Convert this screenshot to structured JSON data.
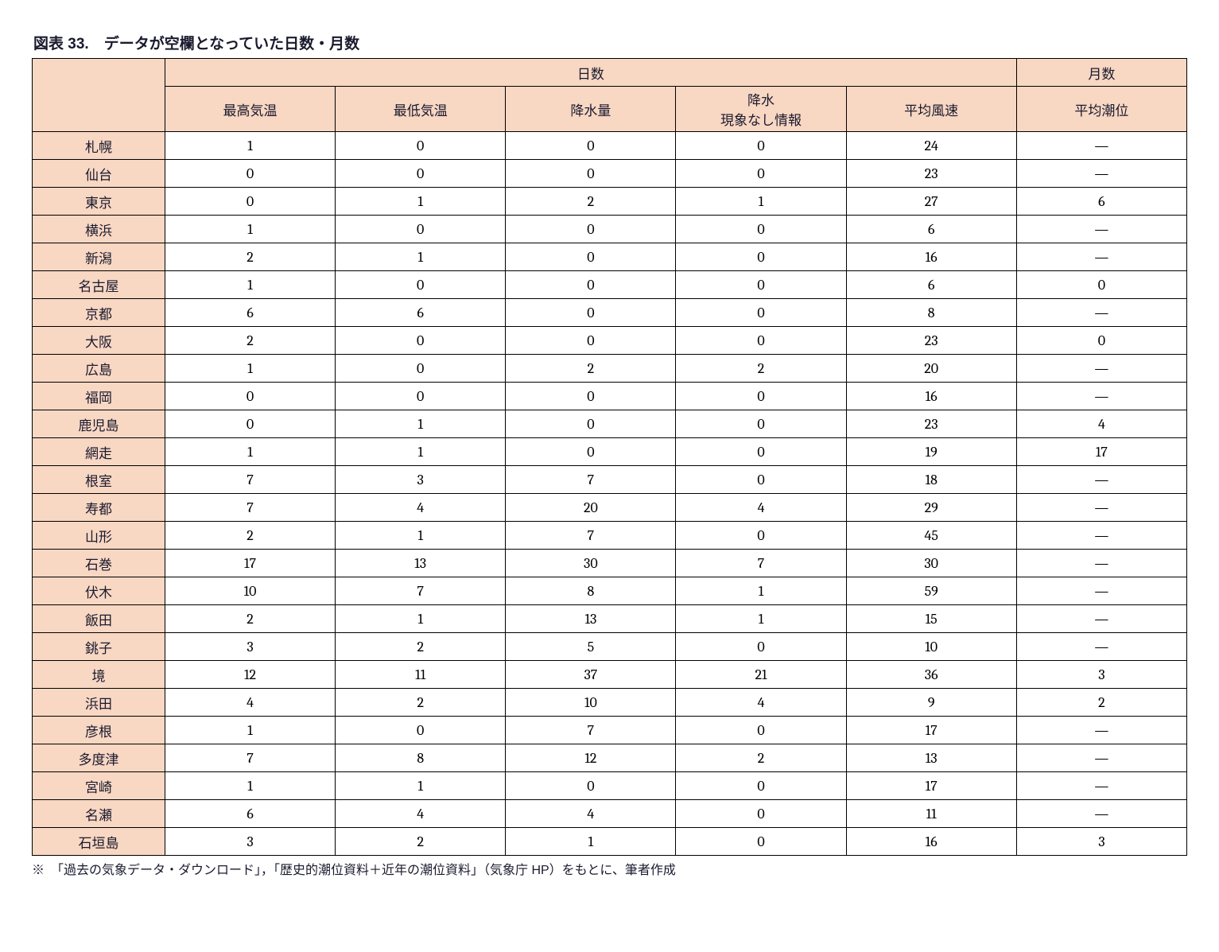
{
  "title": "図表 33.　データが空欄となっていた日数・月数",
  "footnote": "※　「過去の気象データ・ダウンロード」，「歴史的潮位資料＋近年の潮位資料」（気象庁 HP）をもとに、筆者作成",
  "header_group_days": "日数",
  "header_group_months": "月数",
  "columns": {
    "max_temp": "最高気温",
    "min_temp": "最低気温",
    "precip": "降水量",
    "precip_none": "降水\n現象なし情報",
    "wind": "平均風速",
    "tide": "平均潮位"
  },
  "rows": [
    {
      "city": "札幌",
      "max_temp": "1",
      "min_temp": "0",
      "precip": "0",
      "precip_none": "0",
      "wind": "24",
      "tide": "―"
    },
    {
      "city": "仙台",
      "max_temp": "0",
      "min_temp": "0",
      "precip": "0",
      "precip_none": "0",
      "wind": "23",
      "tide": "―"
    },
    {
      "city": "東京",
      "max_temp": "0",
      "min_temp": "1",
      "precip": "2",
      "precip_none": "1",
      "wind": "27",
      "tide": "6"
    },
    {
      "city": "横浜",
      "max_temp": "1",
      "min_temp": "0",
      "precip": "0",
      "precip_none": "0",
      "wind": "6",
      "tide": "―"
    },
    {
      "city": "新潟",
      "max_temp": "2",
      "min_temp": "1",
      "precip": "0",
      "precip_none": "0",
      "wind": "16",
      "tide": "―"
    },
    {
      "city": "名古屋",
      "max_temp": "1",
      "min_temp": "0",
      "precip": "0",
      "precip_none": "0",
      "wind": "6",
      "tide": "0"
    },
    {
      "city": "京都",
      "max_temp": "6",
      "min_temp": "6",
      "precip": "0",
      "precip_none": "0",
      "wind": "8",
      "tide": "―"
    },
    {
      "city": "大阪",
      "max_temp": "2",
      "min_temp": "0",
      "precip": "0",
      "precip_none": "0",
      "wind": "23",
      "tide": "0"
    },
    {
      "city": "広島",
      "max_temp": "1",
      "min_temp": "0",
      "precip": "2",
      "precip_none": "2",
      "wind": "20",
      "tide": "―"
    },
    {
      "city": "福岡",
      "max_temp": "0",
      "min_temp": "0",
      "precip": "0",
      "precip_none": "0",
      "wind": "16",
      "tide": "―"
    },
    {
      "city": "鹿児島",
      "max_temp": "0",
      "min_temp": "1",
      "precip": "0",
      "precip_none": "0",
      "wind": "23",
      "tide": "4"
    },
    {
      "city": "網走",
      "max_temp": "1",
      "min_temp": "1",
      "precip": "0",
      "precip_none": "0",
      "wind": "19",
      "tide": "17"
    },
    {
      "city": "根室",
      "max_temp": "7",
      "min_temp": "3",
      "precip": "7",
      "precip_none": "0",
      "wind": "18",
      "tide": "―"
    },
    {
      "city": "寿都",
      "max_temp": "7",
      "min_temp": "4",
      "precip": "20",
      "precip_none": "4",
      "wind": "29",
      "tide": "―"
    },
    {
      "city": "山形",
      "max_temp": "2",
      "min_temp": "1",
      "precip": "7",
      "precip_none": "0",
      "wind": "45",
      "tide": "―"
    },
    {
      "city": "石巻",
      "max_temp": "17",
      "min_temp": "13",
      "precip": "30",
      "precip_none": "7",
      "wind": "30",
      "tide": "―"
    },
    {
      "city": "伏木",
      "max_temp": "10",
      "min_temp": "7",
      "precip": "8",
      "precip_none": "1",
      "wind": "59",
      "tide": "―"
    },
    {
      "city": "飯田",
      "max_temp": "2",
      "min_temp": "1",
      "precip": "13",
      "precip_none": "1",
      "wind": "15",
      "tide": "―"
    },
    {
      "city": "銚子",
      "max_temp": "3",
      "min_temp": "2",
      "precip": "5",
      "precip_none": "0",
      "wind": "10",
      "tide": "―"
    },
    {
      "city": "境",
      "max_temp": "12",
      "min_temp": "11",
      "precip": "37",
      "precip_none": "21",
      "wind": "36",
      "tide": "3"
    },
    {
      "city": "浜田",
      "max_temp": "4",
      "min_temp": "2",
      "precip": "10",
      "precip_none": "4",
      "wind": "9",
      "tide": "2"
    },
    {
      "city": "彦根",
      "max_temp": "1",
      "min_temp": "0",
      "precip": "7",
      "precip_none": "0",
      "wind": "17",
      "tide": "―"
    },
    {
      "city": "多度津",
      "max_temp": "7",
      "min_temp": "8",
      "precip": "12",
      "precip_none": "2",
      "wind": "13",
      "tide": "―"
    },
    {
      "city": "宮崎",
      "max_temp": "1",
      "min_temp": "1",
      "precip": "0",
      "precip_none": "0",
      "wind": "17",
      "tide": "―"
    },
    {
      "city": "名瀬",
      "max_temp": "6",
      "min_temp": "4",
      "precip": "4",
      "precip_none": "0",
      "wind": "11",
      "tide": "―"
    },
    {
      "city": "石垣島",
      "max_temp": "3",
      "min_temp": "2",
      "precip": "1",
      "precip_none": "0",
      "wind": "16",
      "tide": "3"
    }
  ],
  "styling": {
    "header_bg": "#f8d7c3",
    "border_color": "#000000",
    "title_color": "#1a1a2e",
    "page_bg": "#ffffff",
    "title_fontsize": 19,
    "cell_fontsize": 18,
    "header_fontsize": 17,
    "footnote_fontsize": 16
  }
}
